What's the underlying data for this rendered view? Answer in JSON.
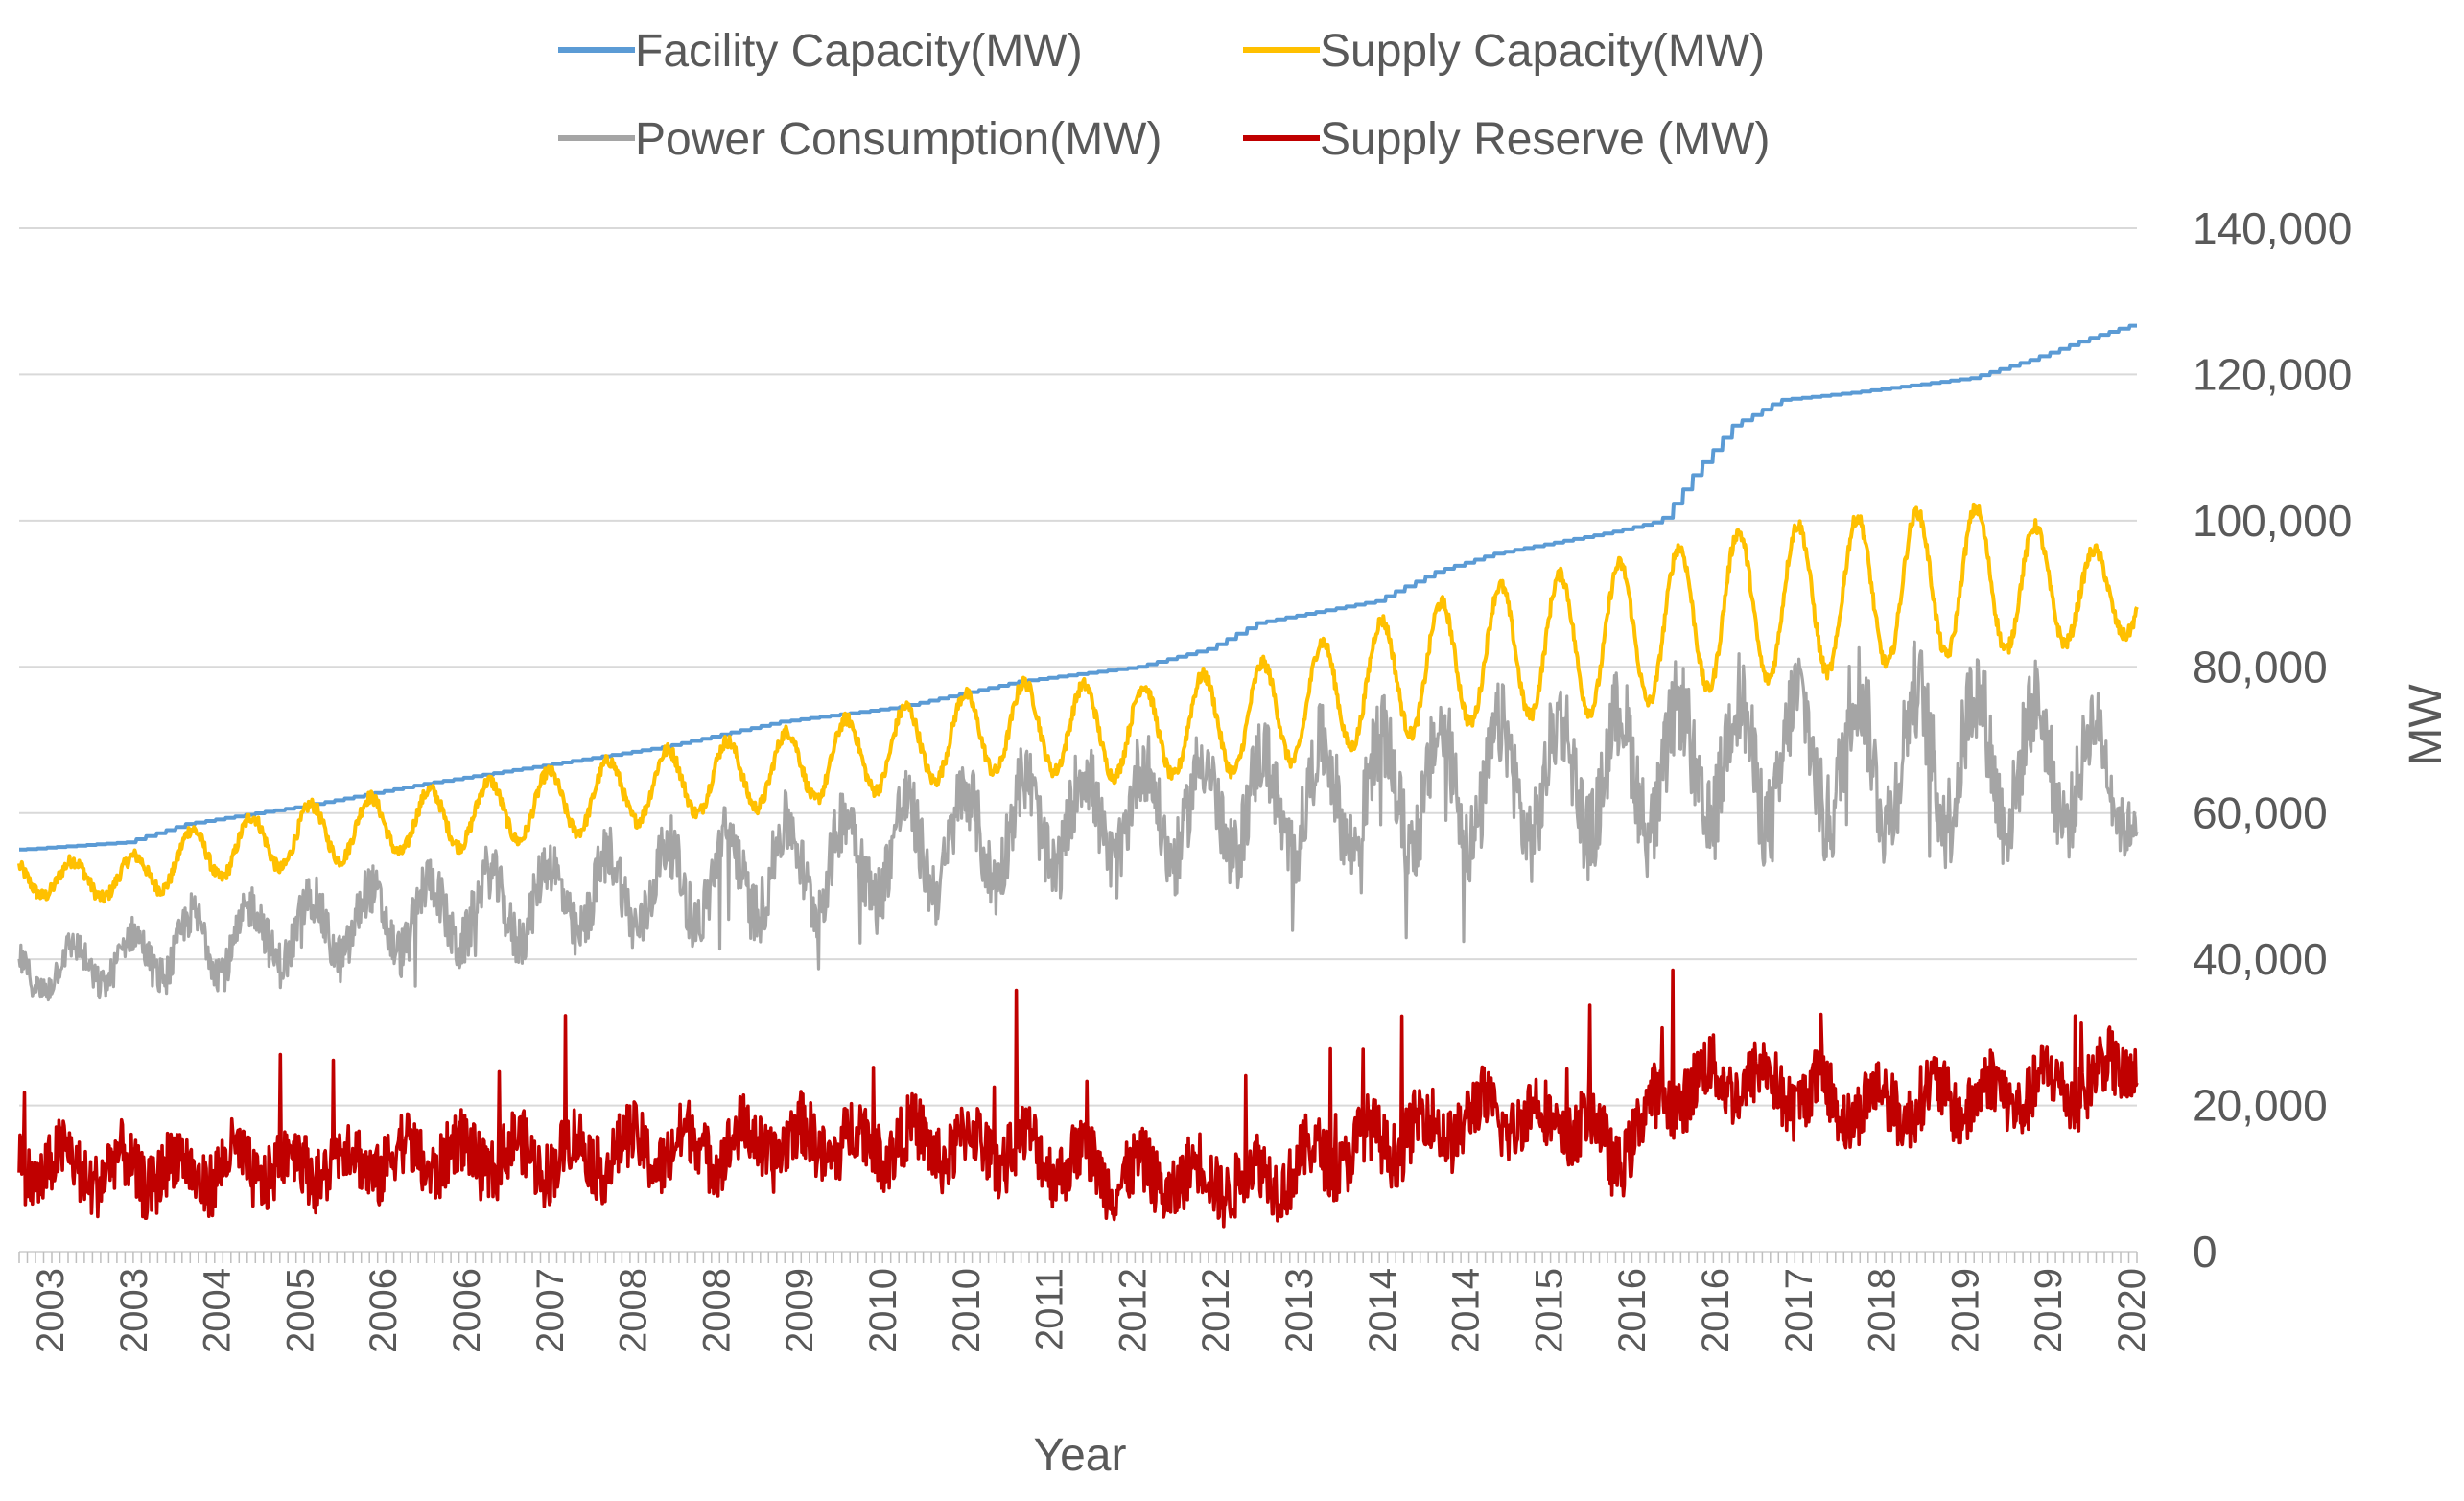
{
  "chart_data": {
    "type": "line",
    "title": "",
    "xlabel": "Year",
    "ylabel": "MW",
    "ylim": [
      0,
      140000
    ],
    "y_ticks": [
      "0",
      "20,000",
      "40,000",
      "60,000",
      "80,000",
      "100,000",
      "120,000",
      "140,000"
    ],
    "y_tick_values": [
      0,
      20000,
      40000,
      60000,
      80000,
      100000,
      120000,
      140000
    ],
    "x_tick_labels": [
      "2003",
      "2003",
      "2004",
      "2005",
      "2006",
      "2006",
      "2007",
      "2008",
      "2008",
      "2009",
      "2010",
      "2010",
      "2011",
      "2012",
      "2012",
      "2013",
      "2014",
      "2014",
      "2015",
      "2016",
      "2016",
      "2017",
      "2018",
      "2019",
      "2019",
      "2020"
    ],
    "x_range": [
      2002.6,
      2020.4
    ],
    "grid": true,
    "legend_position": "top",
    "colors": {
      "facility": "#5b9bd5",
      "supply": "#ffc000",
      "consumption": "#a5a5a5",
      "reserve": "#c00000",
      "grid": "#d9d9d9",
      "axis": "#d9d9d9"
    },
    "series": [
      {
        "name": "Facility Capacity(MW)",
        "key": "facility",
        "x": [
          2002.6,
          2003.5,
          2004.0,
          2005.0,
          2006.0,
          2007.0,
          2008.0,
          2009.0,
          2010.0,
          2011.0,
          2012.0,
          2012.6,
          2013.0,
          2013.5,
          2014.0,
          2014.5,
          2015.0,
          2015.5,
          2016.0,
          2016.4,
          2016.7,
          2017.0,
          2017.4,
          2018.0,
          2018.5,
          2019.0,
          2019.5,
          2020.0,
          2020.4
        ],
        "values": [
          55000,
          56000,
          58500,
          61000,
          64000,
          66500,
          69000,
          72500,
          74500,
          78000,
          80000,
          82500,
          86000,
          87500,
          89000,
          93000,
          95500,
          97000,
          98500,
          100000,
          107000,
          113000,
          116500,
          117500,
          118500,
          119500,
          122000,
          125000,
          127000
        ]
      },
      {
        "name": "Supply Capacity(MW)",
        "key": "supply",
        "x": [
          2002.6,
          2003.5,
          2004.0,
          2005.0,
          2006.0,
          2007.0,
          2008.0,
          2009.0,
          2010.0,
          2011.0,
          2012.0,
          2013.0,
          2014.0,
          2015.0,
          2016.0,
          2017.0,
          2018.0,
          2019.0,
          2019.5,
          2020.0,
          2020.4
        ],
        "values": [
          51000,
          51000,
          54000,
          57000,
          59000,
          61000,
          64000,
          66000,
          69000,
          72000,
          71000,
          73000,
          78000,
          82000,
          84000,
          88000,
          90000,
          92000,
          91000,
          90000,
          89000
        ],
        "amplitude": [
          2500,
          3000,
          4000,
          4500,
          4500,
          5000,
          5000,
          5500,
          6000,
          6500,
          7000,
          8000,
          9000,
          10000,
          11000,
          11500,
          11500,
          11000,
          9500,
          7000,
          5000
        ]
      },
      {
        "name": "Power Consumption(MW)",
        "key": "consumption",
        "x": [
          2002.6,
          2003.5,
          2004.0,
          2005.0,
          2006.0,
          2007.0,
          2008.0,
          2009.0,
          2010.0,
          2011.0,
          2012.0,
          2013.0,
          2014.0,
          2015.0,
          2016.0,
          2017.0,
          2018.0,
          2019.0,
          2019.5,
          2020.0,
          2020.4
        ],
        "values": [
          38000,
          40000,
          42000,
          44000,
          46000,
          48000,
          50000,
          52500,
          55000,
          58000,
          60000,
          61000,
          63000,
          64000,
          65500,
          67000,
          68000,
          68000,
          67000,
          66000,
          62000
        ],
        "amplitude": [
          3500,
          4000,
          5000,
          5500,
          6000,
          6500,
          7000,
          7500,
          8000,
          8500,
          8500,
          9000,
          9500,
          10000,
          10500,
          11000,
          11500,
          11500,
          10500,
          9000,
          6000
        ]
      },
      {
        "name": "Supply Reserve (MW)",
        "key": "reserve",
        "x": [
          2002.6,
          2003.5,
          2004.0,
          2005.0,
          2006.0,
          2007.0,
          2008.0,
          2009.0,
          2010.0,
          2011.0,
          2012.0,
          2013.0,
          2014.0,
          2015.0,
          2015.8,
          2016.0,
          2016.5,
          2017.0,
          2018.0,
          2019.0,
          2020.0,
          2020.4
        ],
        "values": [
          12000,
          11000,
          11000,
          12000,
          13000,
          13000,
          14000,
          15000,
          15000,
          14000,
          10000,
          10000,
          15000,
          19000,
          17000,
          13000,
          22000,
          24000,
          20000,
          21000,
          23000,
          26000
        ]
      }
    ]
  }
}
